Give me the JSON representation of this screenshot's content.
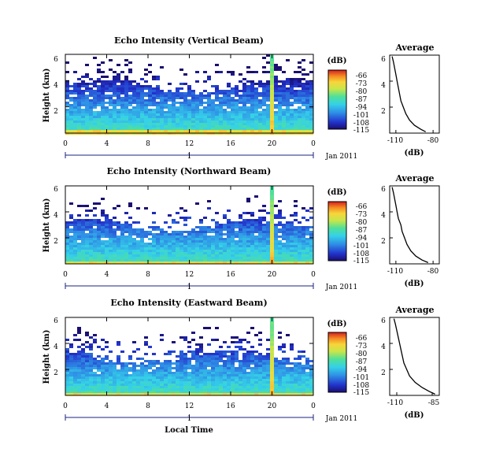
{
  "chart_data": [
    {
      "type": "heatmap",
      "title": "Echo Intensity (Vertical Beam)",
      "ylabel": "Height (km)",
      "x_ticks": [
        "0",
        "4",
        "8",
        "12",
        "16",
        "20",
        "0"
      ],
      "y_ticks": [
        "2",
        "4",
        "6"
      ],
      "ylim": [
        0,
        6
      ],
      "date_marker": "1",
      "date_label": "Jan 2011",
      "colorbar": {
        "unit": "(dB)",
        "ticks": [
          "-66",
          "-73",
          "-80",
          "-87",
          "-94",
          "-101",
          "-108",
          "-115"
        ],
        "range": [
          -115,
          -66
        ]
      },
      "average": {
        "title": "Average",
        "xlabel": "(dB)",
        "x_ticks": [
          "-110",
          "-80"
        ],
        "y_ticks": [
          "2",
          "4",
          "6"
        ],
        "xlim": [
          -115,
          -75
        ],
        "ylim": [
          0,
          6
        ],
        "profile": [
          [
            -86,
            0.1
          ],
          [
            -90,
            0.3
          ],
          [
            -95,
            0.6
          ],
          [
            -99,
            1.0
          ],
          [
            -102,
            1.5
          ],
          [
            -104,
            2.0
          ],
          [
            -106,
            2.5
          ],
          [
            -107,
            3.0
          ],
          [
            -108,
            3.5
          ],
          [
            -109,
            4.0
          ],
          [
            -110,
            4.5
          ],
          [
            -111,
            5.0
          ],
          [
            -112,
            5.5
          ],
          [
            -113,
            5.9
          ]
        ]
      }
    },
    {
      "type": "heatmap",
      "title": "Echo Intensity (Northward Beam)",
      "ylabel": "Height (km)",
      "x_ticks": [
        "0",
        "4",
        "8",
        "12",
        "16",
        "20",
        "0"
      ],
      "y_ticks": [
        "2",
        "4",
        "6"
      ],
      "ylim": [
        0,
        6
      ],
      "date_marker": "1",
      "date_label": "Jan 2011",
      "colorbar": {
        "unit": "(dB)",
        "ticks": [
          "-66",
          "-73",
          "-80",
          "-87",
          "-94",
          "-101",
          "-108",
          "-115"
        ],
        "range": [
          -115,
          -66
        ]
      },
      "average": {
        "title": "Average",
        "xlabel": "(dB)",
        "x_ticks": [
          "-110",
          "-80"
        ],
        "y_ticks": [
          "2",
          "4",
          "6"
        ],
        "xlim": [
          -115,
          -75
        ],
        "ylim": [
          0,
          6
        ],
        "profile": [
          [
            -84,
            0.1
          ],
          [
            -89,
            0.3
          ],
          [
            -94,
            0.6
          ],
          [
            -98,
            1.0
          ],
          [
            -101,
            1.5
          ],
          [
            -103,
            2.0
          ],
          [
            -105,
            2.5
          ],
          [
            -106,
            3.0
          ],
          [
            -108,
            3.5
          ],
          [
            -109,
            4.0
          ],
          [
            -110,
            4.5
          ],
          [
            -111,
            5.0
          ],
          [
            -112,
            5.5
          ],
          [
            -113,
            5.9
          ]
        ]
      }
    },
    {
      "type": "heatmap",
      "title": "Echo Intensity (Eastward Beam)",
      "ylabel": "Height (km)",
      "x_ticks": [
        "0",
        "4",
        "8",
        "12",
        "16",
        "20",
        "0"
      ],
      "y_ticks": [
        "2",
        "4",
        "6"
      ],
      "ylim": [
        0,
        6
      ],
      "date_marker": "1",
      "date_label": "Jan 2011",
      "xlabel": "Local Time",
      "colorbar": {
        "unit": "(dB)",
        "ticks": [
          "-66",
          "-73",
          "-80",
          "-87",
          "-94",
          "-101",
          "-108",
          "-115"
        ],
        "range": [
          -115,
          -66
        ]
      },
      "average": {
        "title": "Average",
        "xlabel": "(dB)",
        "x_ticks": [
          "-110",
          "-85"
        ],
        "y_ticks": [
          "2",
          "4",
          "6"
        ],
        "xlim": [
          -115,
          -80
        ],
        "ylim": [
          0,
          6
        ],
        "profile": [
          [
            -83,
            0.1
          ],
          [
            -87,
            0.3
          ],
          [
            -92,
            0.6
          ],
          [
            -97,
            1.0
          ],
          [
            -101,
            1.5
          ],
          [
            -103,
            2.0
          ],
          [
            -105,
            2.5
          ],
          [
            -106,
            3.0
          ],
          [
            -107,
            3.5
          ],
          [
            -108,
            4.0
          ],
          [
            -109,
            4.5
          ],
          [
            -110,
            5.0
          ],
          [
            -111,
            5.5
          ],
          [
            -112,
            5.9
          ]
        ]
      }
    }
  ]
}
